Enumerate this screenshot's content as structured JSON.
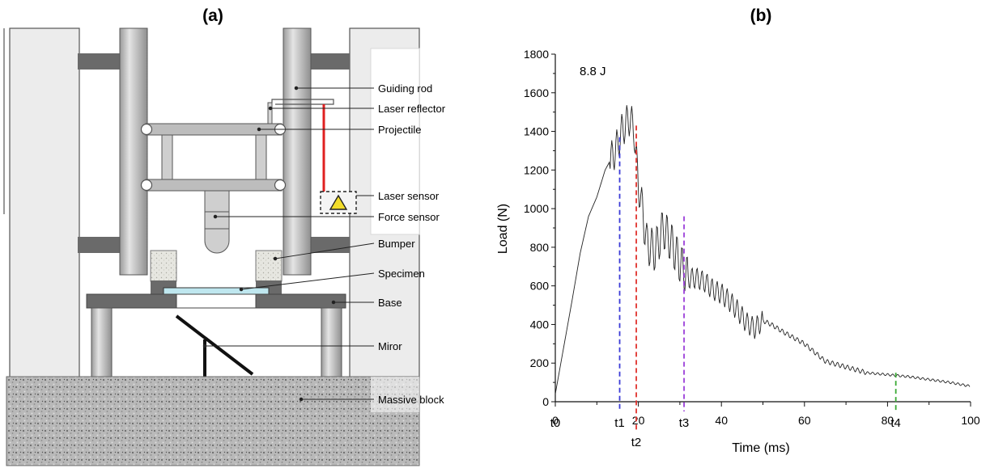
{
  "figure": {
    "panel_a": {
      "title": "(a)",
      "callouts": [
        "Guiding rod",
        "Laser reflector",
        "Projectile",
        "Laser sensor",
        "Force sensor",
        "Bumper",
        "Specimen",
        "Base",
        "Miror",
        "Massive block"
      ]
    },
    "panel_b": {
      "title": "(b)",
      "energy_label": "8.8 J",
      "xlabel": "Time (ms)",
      "ylabel": "Load (N)",
      "time_markers": [
        {
          "label": "t0",
          "time": 0,
          "color": null
        },
        {
          "label": "t1",
          "time": 15.5,
          "color": "#3b3bd6"
        },
        {
          "label": "t2",
          "time": 19.5,
          "color": "#e0322d"
        },
        {
          "label": "t3",
          "time": 31,
          "color": "#9b3fd9"
        },
        {
          "label": "t4",
          "time": 82,
          "color": "#3aaa35"
        }
      ]
    }
  },
  "chart_data": {
    "type": "line",
    "title": "",
    "xlabel": "Time (ms)",
    "ylabel": "Load (N)",
    "xlim": [
      0,
      100
    ],
    "ylim": [
      0,
      1800
    ],
    "xticks": [
      0,
      20,
      40,
      60,
      80,
      100
    ],
    "yticks": [
      0,
      200,
      400,
      600,
      800,
      1000,
      1200,
      1400,
      1600,
      1800
    ],
    "grid": false,
    "line_color": "#222222",
    "series": [
      {
        "x": [
          0,
          2,
          4,
          6,
          8,
          10,
          12,
          14,
          15,
          16,
          17,
          18,
          19,
          20,
          21,
          22,
          24,
          26,
          28,
          30,
          32,
          34,
          36,
          38,
          40,
          42,
          44,
          46,
          48,
          50,
          52,
          55,
          60,
          65,
          70,
          75,
          80,
          85,
          90,
          95,
          100
        ],
        "y": [
          40,
          280,
          520,
          770,
          960,
          1060,
          1200,
          1280,
          1330,
          1400,
          1440,
          1470,
          1400,
          1120,
          1000,
          820,
          780,
          900,
          820,
          720,
          640,
          640,
          620,
          580,
          560,
          520,
          470,
          410,
          380,
          420,
          400,
          360,
          300,
          210,
          180,
          150,
          140,
          130,
          115,
          100,
          80
        ]
      }
    ]
  }
}
